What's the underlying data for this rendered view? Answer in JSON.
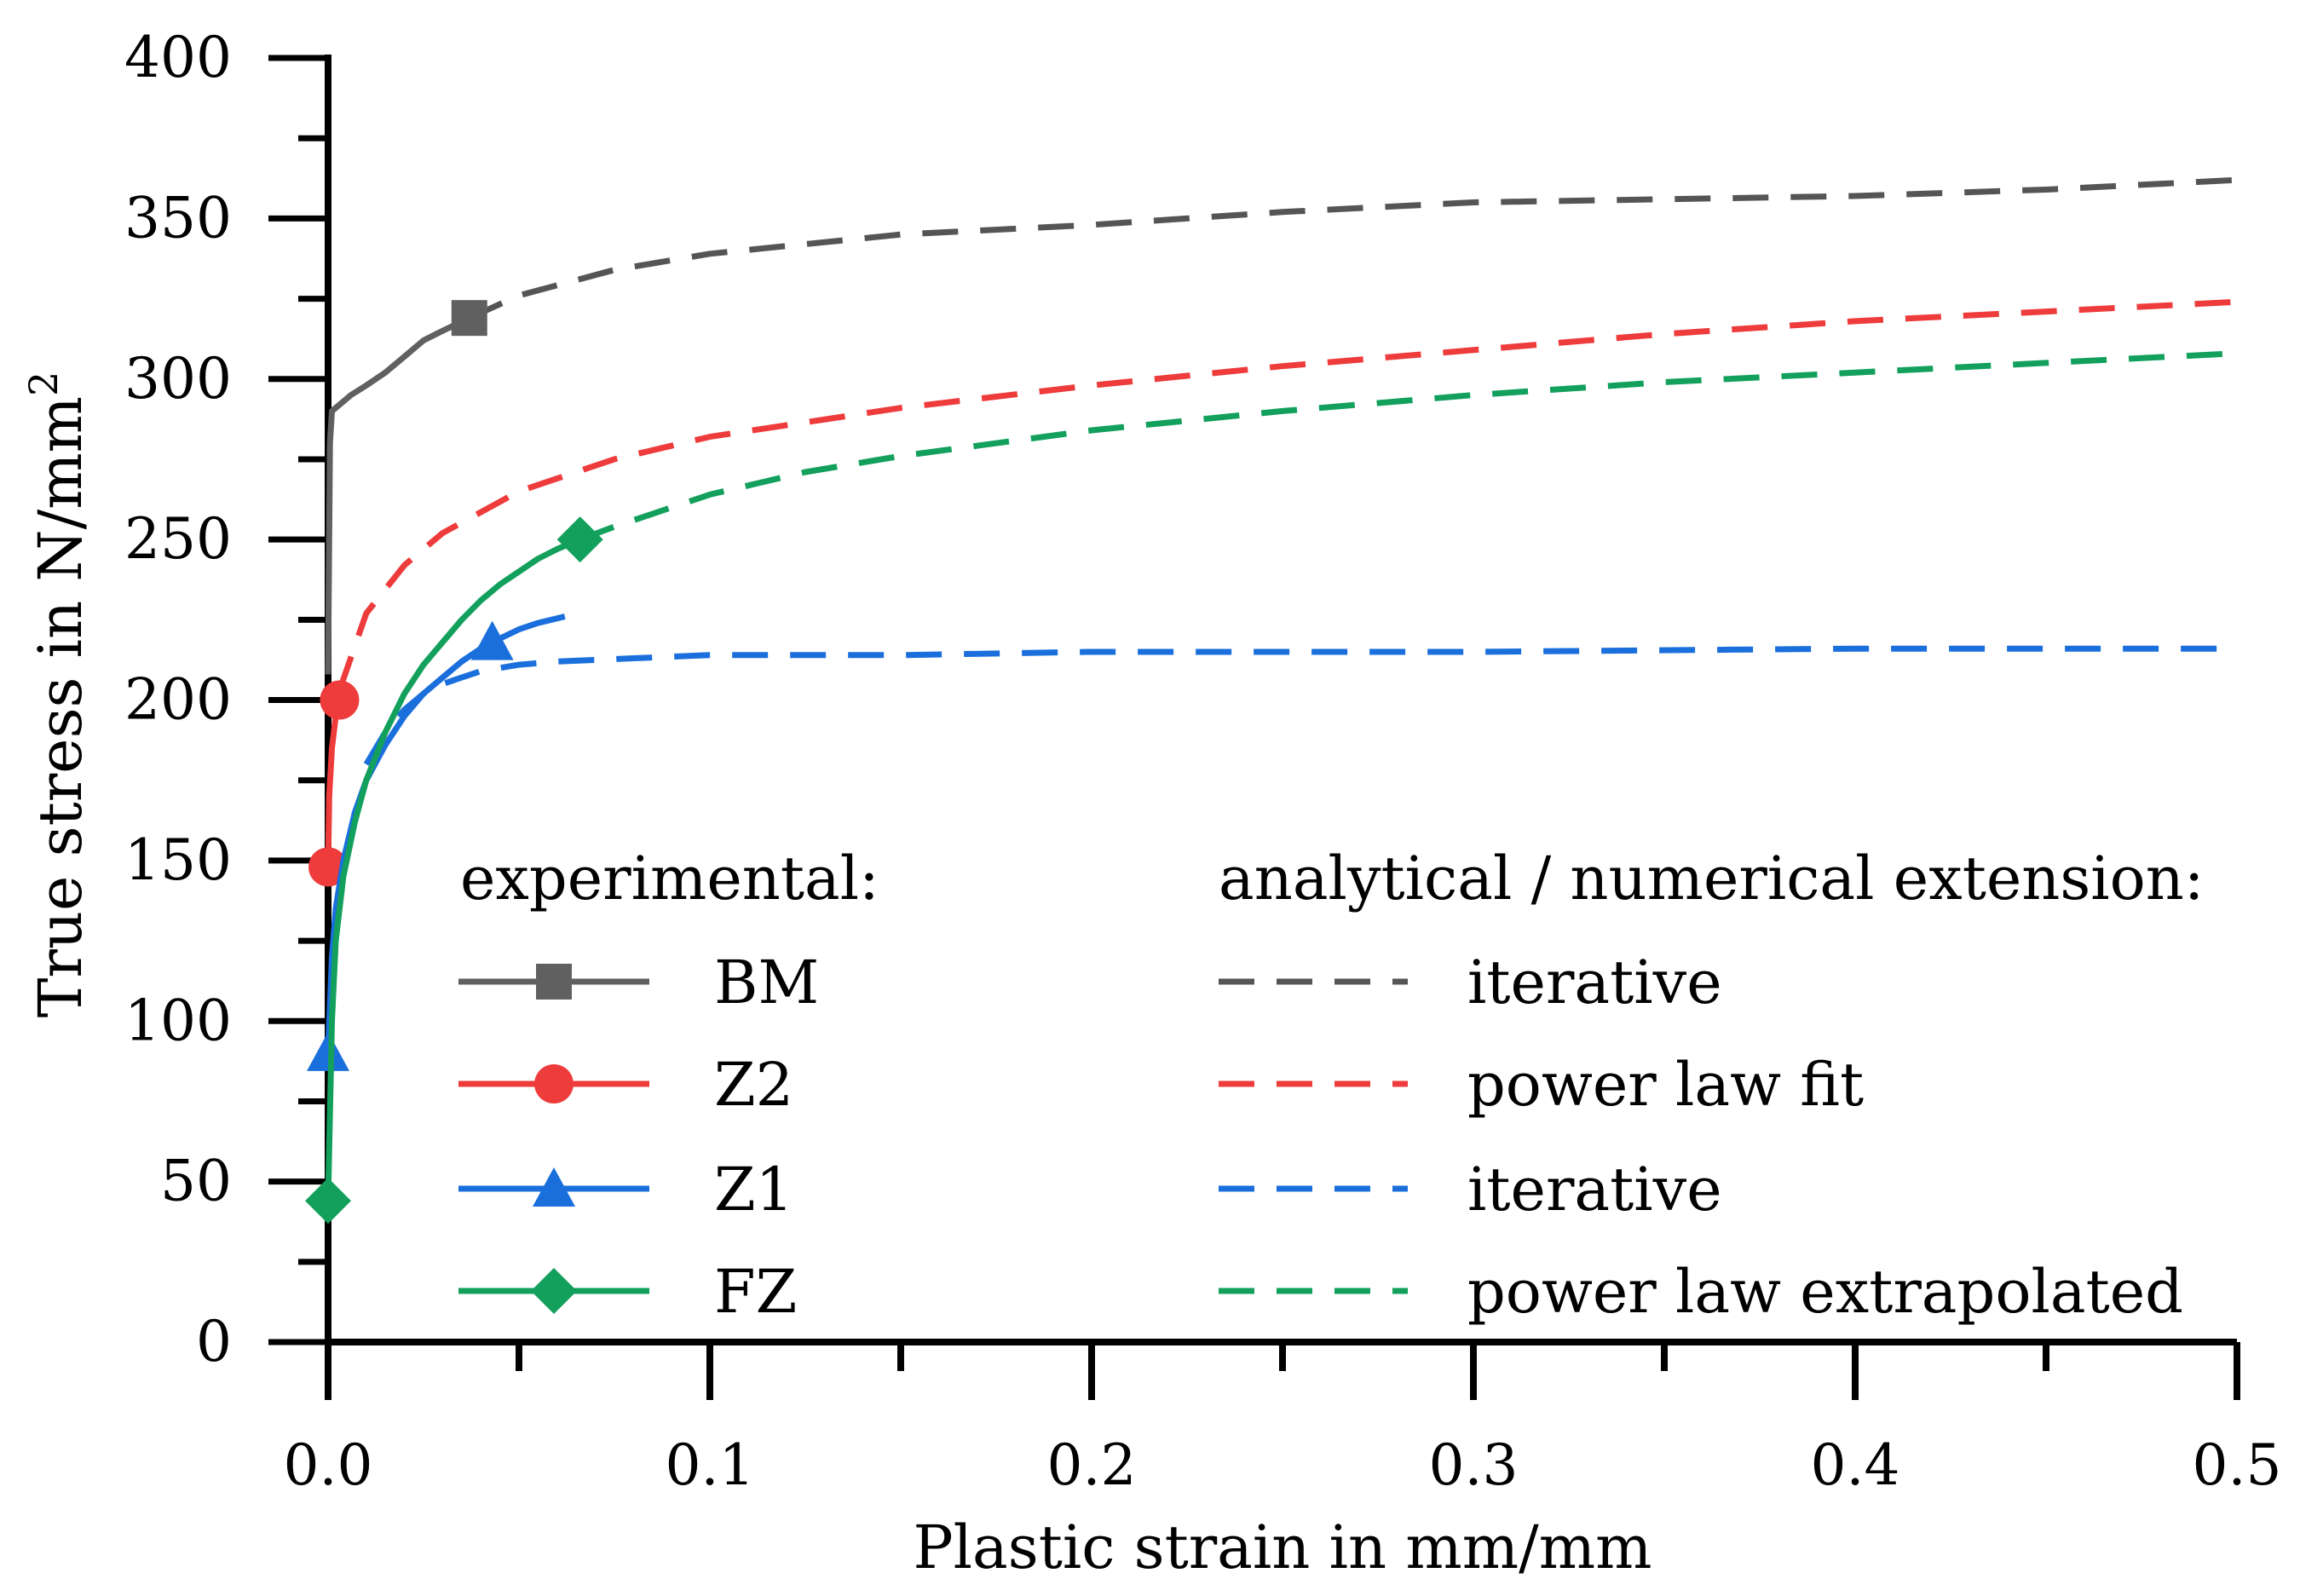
{
  "chart_data": {
    "type": "line",
    "title": "",
    "xlabel": "Plastic strain in mm/mm",
    "ylabel": "True stress in N/mm",
    "ylabel_sup": "2",
    "xlim": [
      0,
      0.5
    ],
    "ylim": [
      0,
      400
    ],
    "x_ticks": [
      0.0,
      0.1,
      0.2,
      0.3,
      0.4,
      0.5
    ],
    "x_tick_labels": [
      "0.0",
      "0.1",
      "0.2",
      "0.3",
      "0.4",
      "0.5"
    ],
    "y_ticks": [
      0,
      50,
      100,
      150,
      200,
      250,
      300,
      350,
      400
    ],
    "y_tick_labels": [
      "0",
      "50",
      "100",
      "150",
      "200",
      "250",
      "300",
      "350",
      "400"
    ],
    "legend": {
      "experimental_header": "experimental:",
      "extension_header": "analytical / numerical extension:",
      "experimental": [
        {
          "label": "BM",
          "color": "#606060",
          "marker": "square"
        },
        {
          "label": "Z2",
          "color": "#ee3b3b",
          "marker": "circle"
        },
        {
          "label": "Z1",
          "color": "#1a6fdc",
          "marker": "triangle"
        },
        {
          "label": "FZ",
          "color": "#12a05c",
          "marker": "diamond"
        }
      ],
      "extension": [
        {
          "label": "iterative",
          "color": "#555555"
        },
        {
          "label": "power law fit",
          "color": "#ee3b3b"
        },
        {
          "label": "iterative",
          "color": "#1a6fdc"
        },
        {
          "label": "power law extrapolated",
          "color": "#12a05c"
        }
      ]
    },
    "series": [
      {
        "name": "BM experimental",
        "style": "solid",
        "color": "#606060",
        "x": [
          0,
          0.0005,
          0.001,
          0.003,
          0.006,
          0.01,
          0.015,
          0.02,
          0.025,
          0.03,
          0.037
        ],
        "y": [
          208,
          280,
          290,
          292,
          295,
          298,
          302,
          307,
          312,
          315,
          319
        ],
        "markers": [
          {
            "x": 0.037,
            "y": 319,
            "shape": "square"
          }
        ]
      },
      {
        "name": "Z2 experimental",
        "style": "solid",
        "color": "#ee3b3b",
        "x": [
          0,
          0.0003,
          0.001,
          0.002,
          0.003
        ],
        "y": [
          148,
          170,
          185,
          195,
          200
        ],
        "markers": [
          {
            "x": 0.003,
            "y": 200,
            "shape": "circle"
          },
          {
            "x": 0.0,
            "y": 148,
            "shape": "circle"
          }
        ]
      },
      {
        "name": "Z1 experimental",
        "style": "solid",
        "color": "#1a6fdc",
        "x": [
          0,
          0.001,
          0.002,
          0.004,
          0.007,
          0.01,
          0.015,
          0.02,
          0.025,
          0.03,
          0.035,
          0.04,
          0.043,
          0.05,
          0.055,
          0.062
        ],
        "y": [
          90,
          120,
          135,
          150,
          165,
          175,
          186,
          195,
          202,
          207,
          212,
          216,
          218,
          222,
          224,
          226
        ],
        "markers": [
          {
            "x": 0.043,
            "y": 218,
            "shape": "triangle"
          },
          {
            "x": 0.0,
            "y": 90,
            "shape": "triangle"
          }
        ]
      },
      {
        "name": "FZ experimental",
        "style": "solid",
        "color": "#12a05c",
        "x": [
          0,
          0.001,
          0.002,
          0.004,
          0.007,
          0.01,
          0.015,
          0.02,
          0.025,
          0.03,
          0.035,
          0.04,
          0.045,
          0.05,
          0.055,
          0.06,
          0.066
        ],
        "y": [
          44,
          100,
          125,
          145,
          162,
          175,
          190,
          202,
          211,
          218,
          225,
          231,
          236,
          240,
          244,
          247,
          250
        ],
        "markers": [
          {
            "x": 0.066,
            "y": 250,
            "shape": "diamond"
          },
          {
            "x": 0.0,
            "y": 44,
            "shape": "diamond"
          }
        ]
      },
      {
        "name": "BM iterative",
        "style": "dashed",
        "color": "#555555",
        "x": [
          0.037,
          0.05,
          0.075,
          0.1,
          0.15,
          0.2,
          0.25,
          0.3,
          0.35,
          0.4,
          0.45,
          0.5
        ],
        "y": [
          319,
          326,
          334,
          339,
          345,
          348,
          352,
          355,
          356,
          357,
          359,
          362
        ]
      },
      {
        "name": "Z2 power law fit",
        "style": "dashed",
        "color": "#ee3b3b",
        "x": [
          0.003,
          0.01,
          0.02,
          0.03,
          0.05,
          0.075,
          0.1,
          0.15,
          0.2,
          0.25,
          0.3,
          0.35,
          0.4,
          0.45,
          0.5
        ],
        "y": [
          203,
          227,
          242,
          252,
          265,
          275,
          282,
          291,
          298,
          304,
          309,
          314,
          318,
          321,
          324
        ]
      },
      {
        "name": "Z1 iterative",
        "style": "dashed",
        "color": "#1a6fdc",
        "x": [
          0.01,
          0.015,
          0.02,
          0.025,
          0.03,
          0.035,
          0.04,
          0.05,
          0.06,
          0.08,
          0.1,
          0.15,
          0.2,
          0.3,
          0.4,
          0.5
        ],
        "y": [
          180,
          190,
          197,
          202,
          205,
          207,
          209,
          211,
          212,
          213,
          214,
          214,
          215,
          215,
          216,
          216
        ]
      },
      {
        "name": "FZ power law extrapolated",
        "style": "dashed",
        "color": "#12a05c",
        "x": [
          0.066,
          0.075,
          0.1,
          0.125,
          0.15,
          0.2,
          0.25,
          0.3,
          0.35,
          0.4,
          0.45,
          0.5
        ],
        "y": [
          250,
          254,
          264,
          271,
          276,
          284,
          290,
          295,
          299,
          302,
          305,
          308
        ]
      }
    ]
  }
}
